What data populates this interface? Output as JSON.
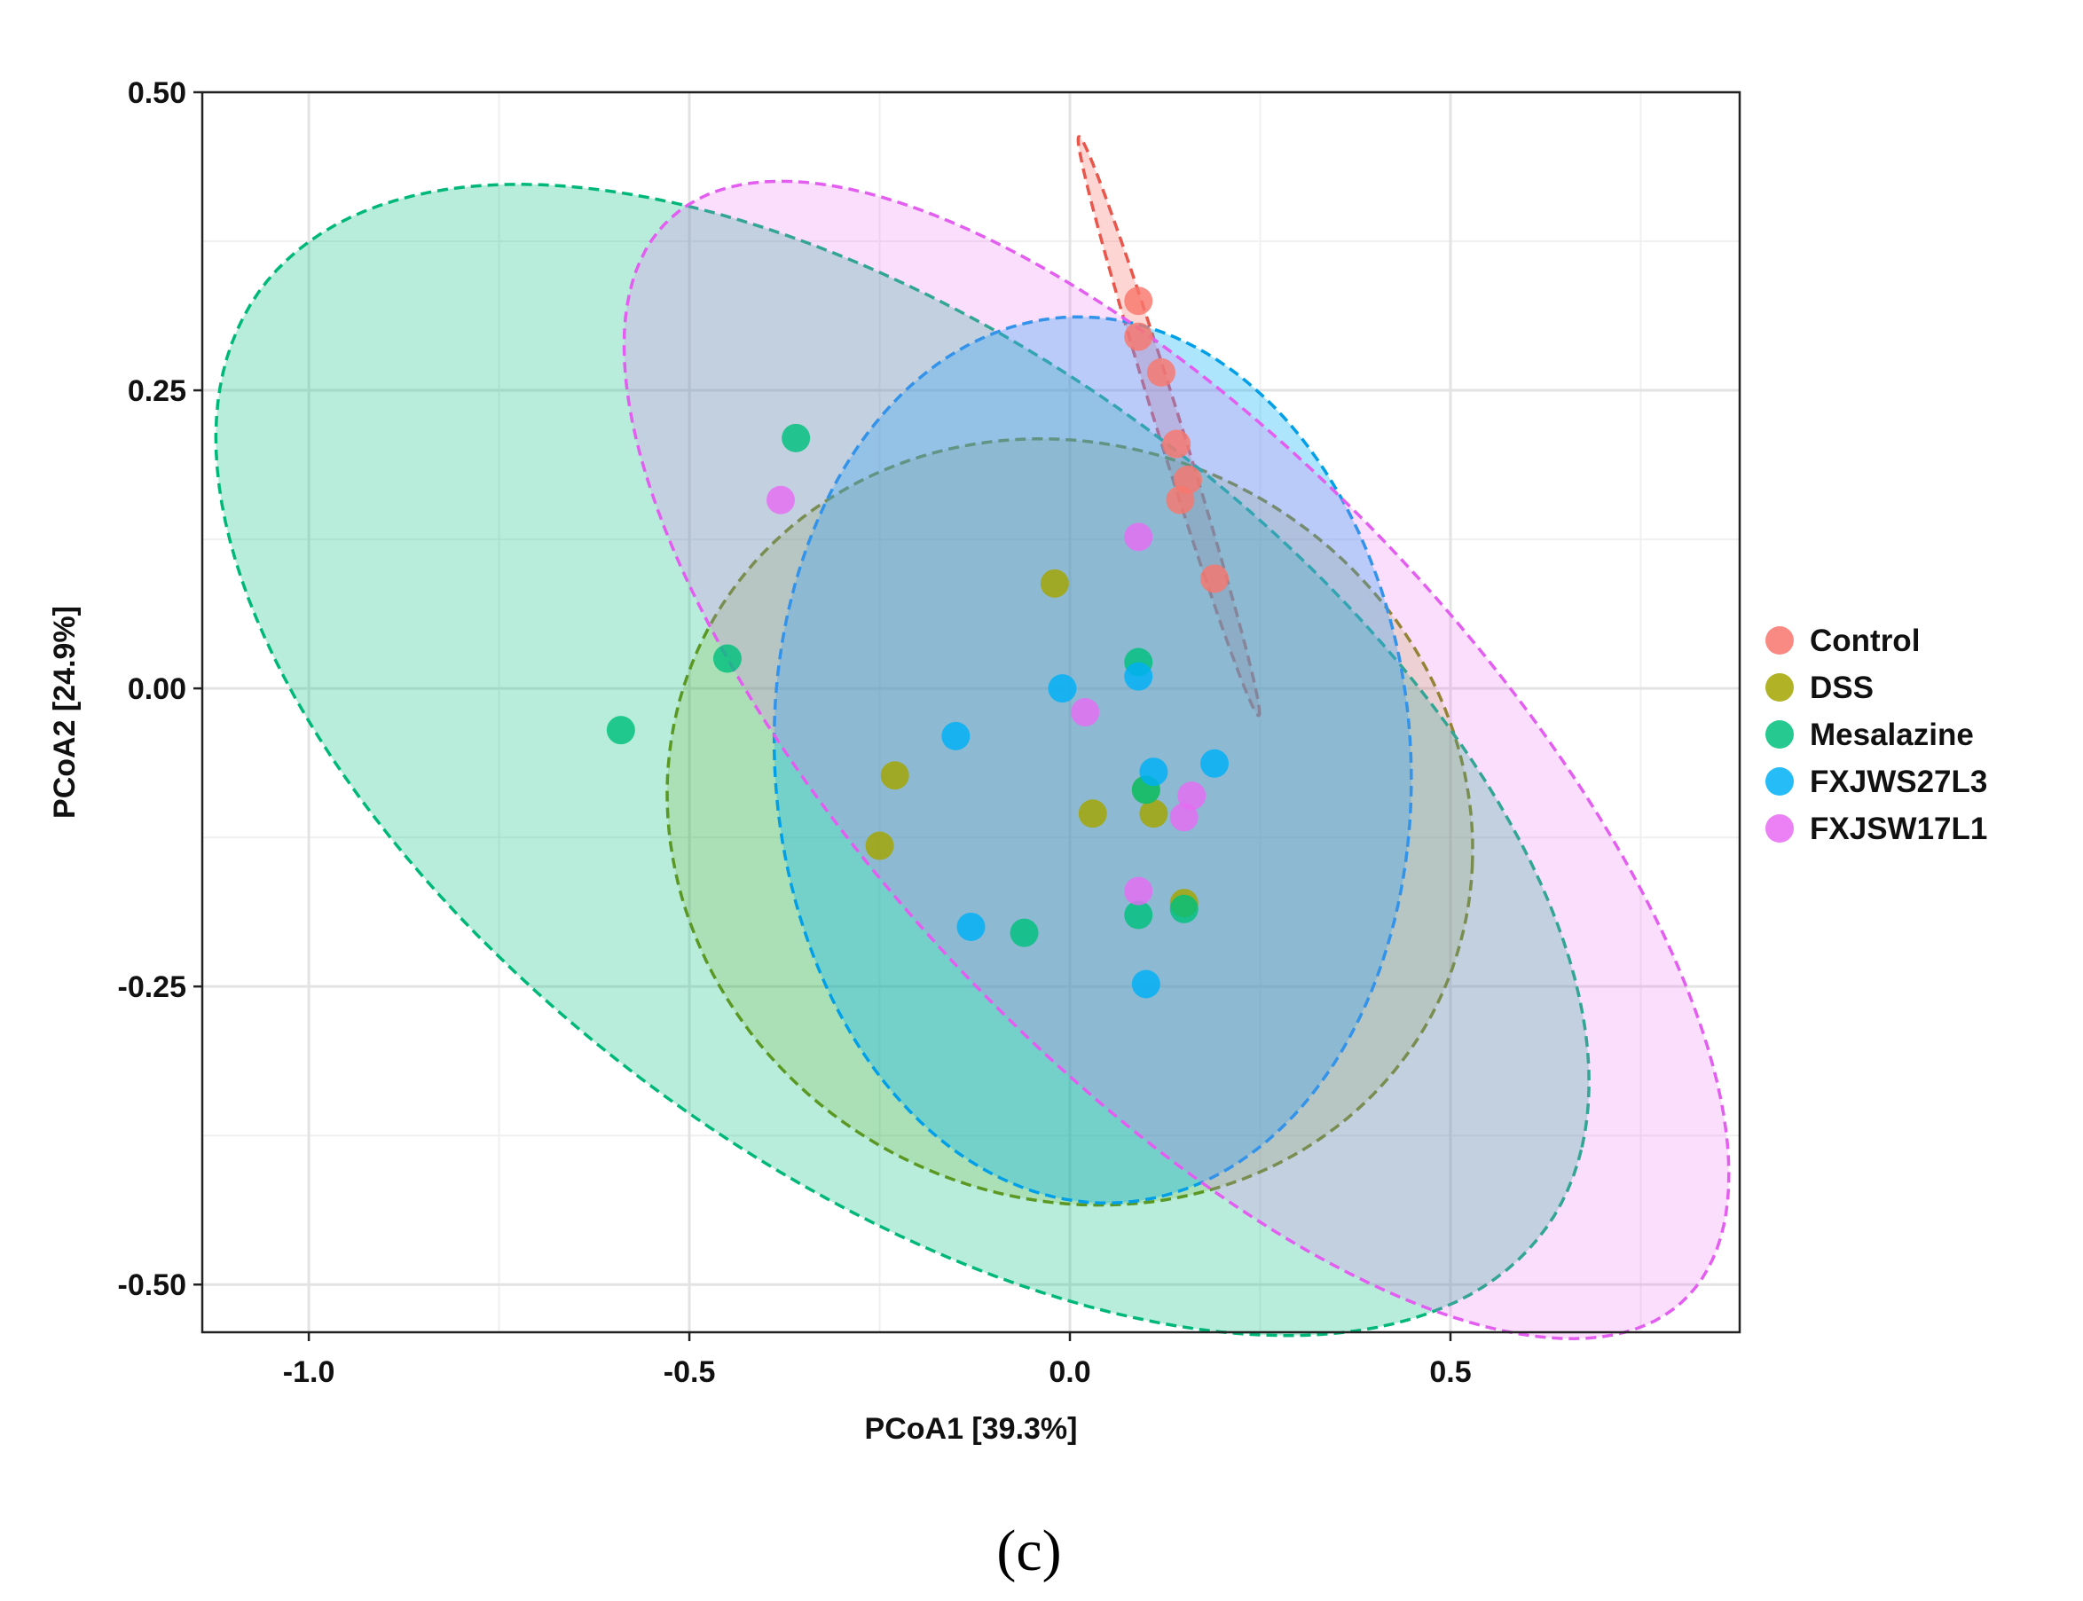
{
  "chart_data": {
    "type": "scatter",
    "xlabel": "PCoA1 [39.3%]",
    "ylabel": "PCoA2 [24.9%]",
    "xlim": [
      -1.14,
      0.88
    ],
    "ylim": [
      -0.54,
      0.5
    ],
    "xticks": [
      -1.0,
      -0.5,
      0.0,
      0.5
    ],
    "xtick_labels": [
      "-1.0",
      "-0.5",
      "0.0",
      "0.5"
    ],
    "yticks": [
      -0.5,
      -0.25,
      0.0,
      0.25,
      0.5
    ],
    "ytick_labels": [
      "-0.50",
      "-0.25",
      "0.00",
      "0.25",
      "0.50"
    ],
    "grid": true,
    "legend_position": "right",
    "caption": "(c)",
    "series": [
      {
        "name": "Control",
        "color": "#F8766D",
        "ellipse": {
          "cx": 0.13,
          "cy": 0.22,
          "rx": 0.27,
          "ry": 0.015,
          "angle_deg": -64
        },
        "points": [
          [
            0.09,
            0.325
          ],
          [
            0.09,
            0.295
          ],
          [
            0.12,
            0.265
          ],
          [
            0.14,
            0.205
          ],
          [
            0.155,
            0.175
          ],
          [
            0.145,
            0.158
          ],
          [
            0.19,
            0.092
          ]
        ]
      },
      {
        "name": "DSS",
        "color": "#A3A500",
        "ellipse": {
          "cx": 0.0,
          "cy": -0.112,
          "rx": 0.53,
          "ry": 0.32,
          "angle_deg": -4
        },
        "points": [
          [
            -0.02,
            0.088
          ],
          [
            -0.23,
            -0.073
          ],
          [
            -0.25,
            -0.132
          ],
          [
            0.03,
            -0.105
          ],
          [
            0.11,
            -0.105
          ],
          [
            0.1,
            -0.085
          ],
          [
            0.15,
            -0.18
          ]
        ]
      },
      {
        "name": "Mesalazine",
        "color": "#00BF7D",
        "ellipse": {
          "cx": -0.22,
          "cy": -0.06,
          "rx": 0.95,
          "ry": 0.38,
          "angle_deg": -20
        },
        "points": [
          [
            -0.36,
            0.21
          ],
          [
            -0.45,
            0.025
          ],
          [
            -0.59,
            -0.035
          ],
          [
            0.09,
            0.022
          ],
          [
            -0.06,
            -0.205
          ],
          [
            0.1,
            -0.085
          ],
          [
            0.09,
            -0.19
          ],
          [
            0.15,
            -0.185
          ]
        ]
      },
      {
        "name": "FXJWS27L3",
        "color": "#00B0F6",
        "ellipse": {
          "cx": 0.03,
          "cy": -0.06,
          "rx": 0.42,
          "ry": 0.37,
          "angle_deg": -10
        },
        "points": [
          [
            -0.01,
            0.0
          ],
          [
            0.09,
            0.01
          ],
          [
            -0.15,
            -0.04
          ],
          [
            0.11,
            -0.07
          ],
          [
            0.19,
            -0.063
          ],
          [
            -0.13,
            -0.2
          ],
          [
            0.1,
            -0.248
          ]
        ]
      },
      {
        "name": "FXJSW17L1",
        "color": "#E76BF3",
        "ellipse": {
          "cx": 0.14,
          "cy": -0.06,
          "rx": 0.82,
          "ry": 0.3,
          "angle_deg": -30
        },
        "points": [
          [
            -0.38,
            0.158
          ],
          [
            0.09,
            0.127
          ],
          [
            0.02,
            -0.02
          ],
          [
            0.16,
            -0.09
          ],
          [
            0.15,
            -0.108
          ],
          [
            0.09,
            -0.17
          ]
        ]
      }
    ]
  }
}
